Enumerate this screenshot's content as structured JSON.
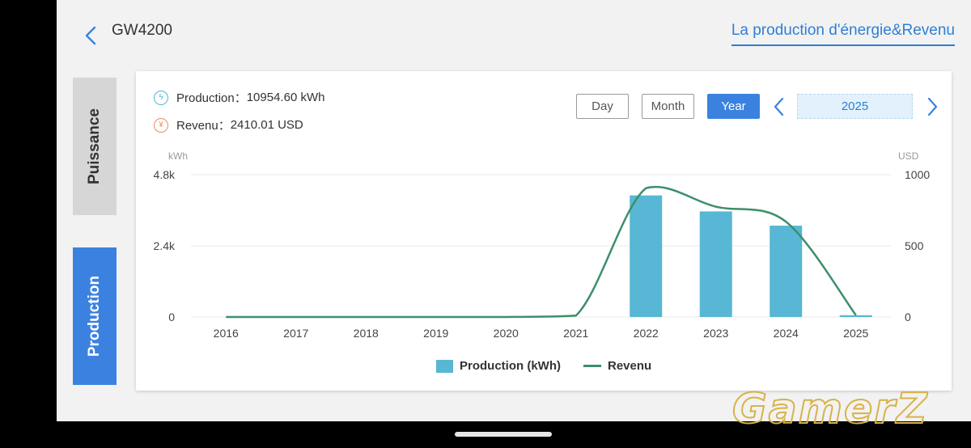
{
  "header": {
    "title": "GW4200",
    "link": "La production d'énergie&Revenu"
  },
  "side_tabs": {
    "power": "Puissance",
    "production": "Production"
  },
  "stats": {
    "production_label": "Production：",
    "production_value": "10954.60 kWh",
    "revenue_label": "Revenu：",
    "revenue_value": "2410.01 USD"
  },
  "period": {
    "day": "Day",
    "month": "Month",
    "year": "Year",
    "selected": "2025"
  },
  "icons": {
    "production": "lightning-circle-icon",
    "revenue": "yen-circle-icon"
  },
  "colors": {
    "bar": "#57b7d4",
    "line": "#3d8f6b",
    "accent": "#3b82e0",
    "link": "#2d7fd6"
  },
  "chart_data": {
    "type": "bar",
    "categories": [
      "2016",
      "2017",
      "2018",
      "2019",
      "2020",
      "2021",
      "2022",
      "2023",
      "2024",
      "2025"
    ],
    "series": [
      {
        "name": "Production (kWh)",
        "type": "bar",
        "axis": "left",
        "values": [
          0,
          0,
          0,
          0,
          0,
          0,
          4100,
          3560,
          3080,
          60
        ]
      },
      {
        "name": "Revenu",
        "type": "line",
        "axis": "right",
        "values": [
          0,
          0,
          0,
          0,
          0,
          10,
          905,
          775,
          670,
          13
        ]
      }
    ],
    "y_left": {
      "unit": "kWh",
      "ticks": [
        "0",
        "2.4k",
        "4.8k"
      ],
      "min": 0,
      "max": 4800
    },
    "y_right": {
      "unit": "USD",
      "ticks": [
        "0",
        "500",
        "1000"
      ],
      "min": 0,
      "max": 1000
    },
    "grid": true,
    "legend_position": "bottom"
  },
  "watermark": "GamerZ"
}
